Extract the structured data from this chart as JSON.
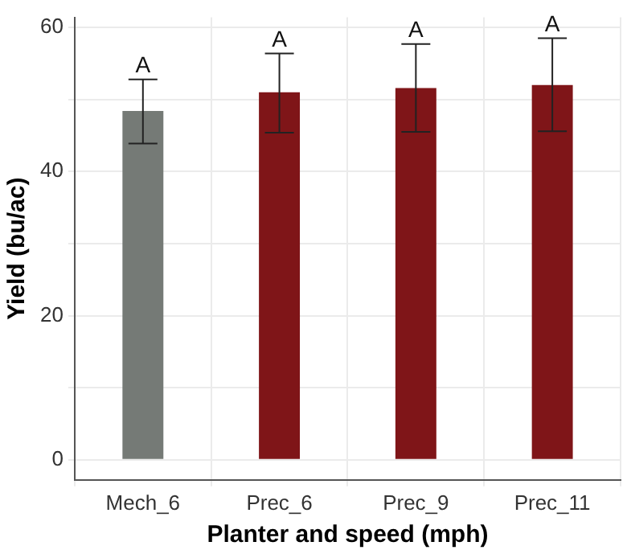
{
  "chart_data": {
    "type": "bar",
    "xlabel": "Planter and speed (mph)",
    "ylabel": "Yield (bu/ac)",
    "categories": [
      "Mech_6",
      "Prec_6",
      "Prec_9",
      "Prec_11"
    ],
    "values": [
      48.4,
      51.0,
      51.6,
      52.0
    ],
    "colors": [
      "#757a76",
      "#7f1518",
      "#7f1518",
      "#7f1518"
    ],
    "errors": [
      [
        43.9,
        52.8
      ],
      [
        45.4,
        56.4
      ],
      [
        45.5,
        57.7
      ],
      [
        45.6,
        58.5
      ]
    ],
    "ylim": [
      -2.8,
      61.4
    ],
    "yticks": [
      0,
      {
        "value": 10,
        "label": null
      },
      20,
      {
        "value": 30,
        "label": null
      },
      40,
      {
        "value": 50,
        "label": null
      },
      60
    ],
    "grid": true,
    "legend": false,
    "annotations": [
      {
        "text": "A",
        "x": "Mech_6",
        "y": 52.8
      },
      {
        "text": "A",
        "x": "Prec_6",
        "y": 56.4
      },
      {
        "text": "A",
        "x": "Prec_9",
        "y": 57.7
      },
      {
        "text": "A",
        "x": "Prec_11",
        "y": 58.5
      }
    ]
  }
}
